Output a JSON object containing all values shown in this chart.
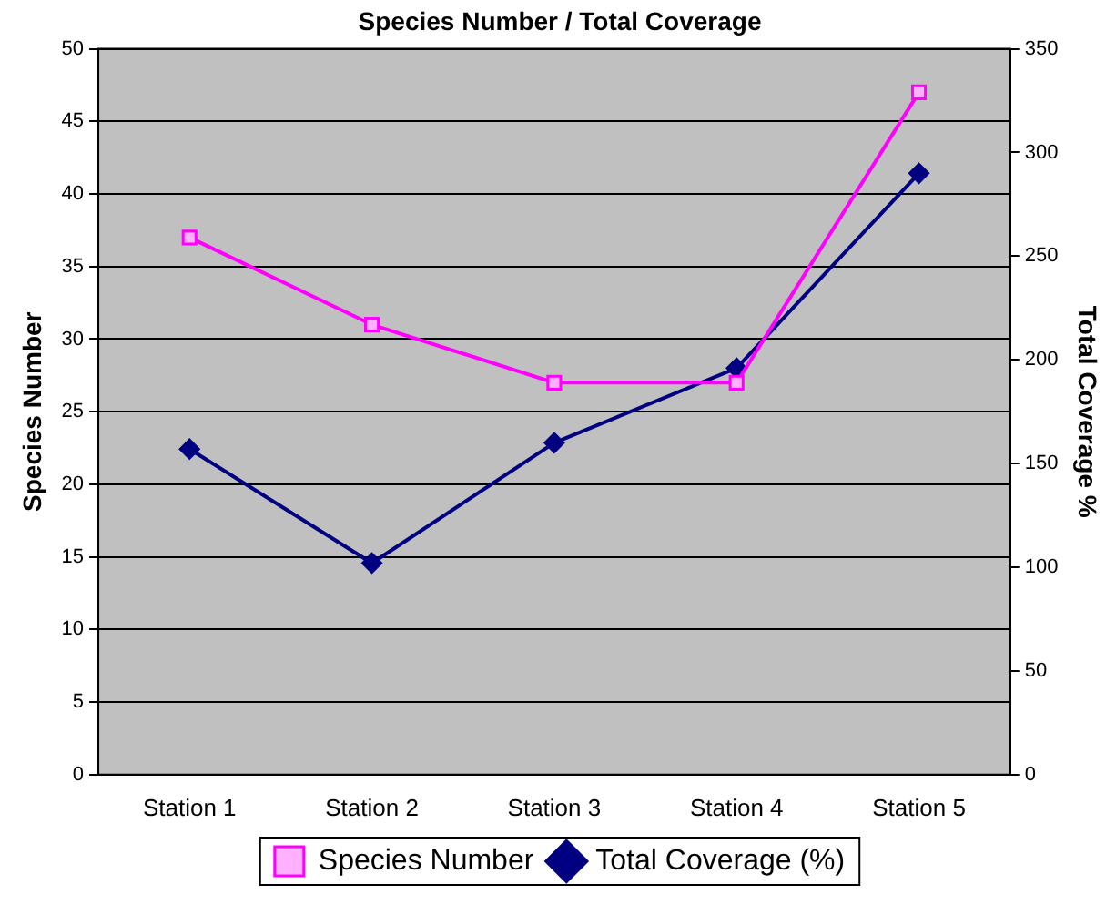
{
  "chart_data": {
    "type": "line",
    "title": "Species Number / Total Coverage",
    "ylabel": "Species Number",
    "y2label": "Total Coverage %",
    "categories": [
      "Station 1",
      "Station 2",
      "Station 3",
      "Station 4",
      "Station 5"
    ],
    "series": [
      {
        "name": "Species Number",
        "color": "#ff00ff",
        "marker": "square",
        "values": [
          37,
          31,
          27,
          27,
          47
        ]
      },
      {
        "name": "Total Coverage (%)",
        "color": "#000080",
        "marker": "diamond",
        "axis": "y2",
        "values": [
          157,
          102,
          160,
          196,
          290
        ]
      }
    ],
    "ylim": [
      0,
      50
    ],
    "yticks": [
      0,
      5,
      10,
      15,
      20,
      25,
      30,
      35,
      40,
      45,
      50
    ],
    "y2lim": [
      0,
      350
    ],
    "y2ticks": [
      0,
      50,
      100,
      150,
      200,
      250,
      300,
      350
    ],
    "grid": "y",
    "legend": "bottom"
  }
}
